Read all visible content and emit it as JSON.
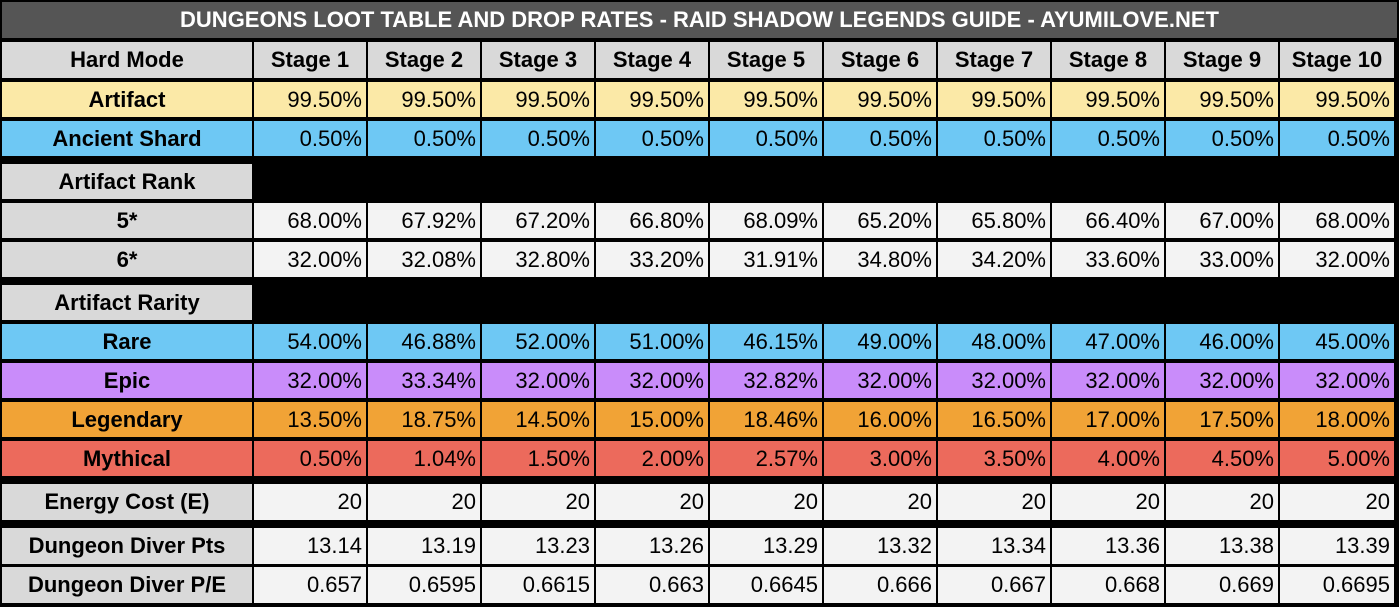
{
  "title": "DUNGEONS LOOT TABLE AND DROP RATES - RAID SHADOW LEGENDS GUIDE - AYUMILOVE.NET",
  "header": {
    "label": "Hard Mode",
    "stages": [
      "Stage 1",
      "Stage 2",
      "Stage 3",
      "Stage 4",
      "Stage 5",
      "Stage 6",
      "Stage 7",
      "Stage 8",
      "Stage 9",
      "Stage 10"
    ]
  },
  "colors": {
    "title_bg": "#555555",
    "artifact": "#fbe9a7",
    "shard": "#6ec8f4",
    "rare": "#6ec8f4",
    "epic": "#c98cfa",
    "legendary": "#f1a336",
    "mythical": "#ec6a5c",
    "grey": "#d9d9d9",
    "white": "#f3f3f3"
  },
  "rows": {
    "artifact": {
      "label": "Artifact",
      "values": [
        "99.50%",
        "99.50%",
        "99.50%",
        "99.50%",
        "99.50%",
        "99.50%",
        "99.50%",
        "99.50%",
        "99.50%",
        "99.50%"
      ]
    },
    "shard": {
      "label": "Ancient Shard",
      "values": [
        "0.50%",
        "0.50%",
        "0.50%",
        "0.50%",
        "0.50%",
        "0.50%",
        "0.50%",
        "0.50%",
        "0.50%",
        "0.50%"
      ]
    },
    "rank_header": {
      "label": "Artifact Rank"
    },
    "rank5": {
      "label": "5*",
      "values": [
        "68.00%",
        "67.92%",
        "67.20%",
        "66.80%",
        "68.09%",
        "65.20%",
        "65.80%",
        "66.40%",
        "67.00%",
        "68.00%"
      ]
    },
    "rank6": {
      "label": "6*",
      "values": [
        "32.00%",
        "32.08%",
        "32.80%",
        "33.20%",
        "31.91%",
        "34.80%",
        "34.20%",
        "33.60%",
        "33.00%",
        "32.00%"
      ]
    },
    "rarity_header": {
      "label": "Artifact Rarity"
    },
    "rare": {
      "label": "Rare",
      "values": [
        "54.00%",
        "46.88%",
        "52.00%",
        "51.00%",
        "46.15%",
        "49.00%",
        "48.00%",
        "47.00%",
        "46.00%",
        "45.00%"
      ]
    },
    "epic": {
      "label": "Epic",
      "values": [
        "32.00%",
        "33.34%",
        "32.00%",
        "32.00%",
        "32.82%",
        "32.00%",
        "32.00%",
        "32.00%",
        "32.00%",
        "32.00%"
      ]
    },
    "legendary": {
      "label": "Legendary",
      "values": [
        "13.50%",
        "18.75%",
        "14.50%",
        "15.00%",
        "18.46%",
        "16.00%",
        "16.50%",
        "17.00%",
        "17.50%",
        "18.00%"
      ]
    },
    "mythical": {
      "label": "Mythical",
      "values": [
        "0.50%",
        "1.04%",
        "1.50%",
        "2.00%",
        "2.57%",
        "3.00%",
        "3.50%",
        "4.00%",
        "4.50%",
        "5.00%"
      ]
    },
    "energy": {
      "label": "Energy Cost (E)",
      "values": [
        "20",
        "20",
        "20",
        "20",
        "20",
        "20",
        "20",
        "20",
        "20",
        "20"
      ]
    },
    "diver_pts": {
      "label": "Dungeon Diver Pts",
      "values": [
        "13.14",
        "13.19",
        "13.23",
        "13.26",
        "13.29",
        "13.32",
        "13.34",
        "13.36",
        "13.38",
        "13.39"
      ]
    },
    "diver_pe": {
      "label": "Dungeon Diver P/E",
      "values": [
        "0.657",
        "0.6595",
        "0.6615",
        "0.663",
        "0.6645",
        "0.666",
        "0.667",
        "0.668",
        "0.669",
        "0.6695"
      ]
    }
  }
}
